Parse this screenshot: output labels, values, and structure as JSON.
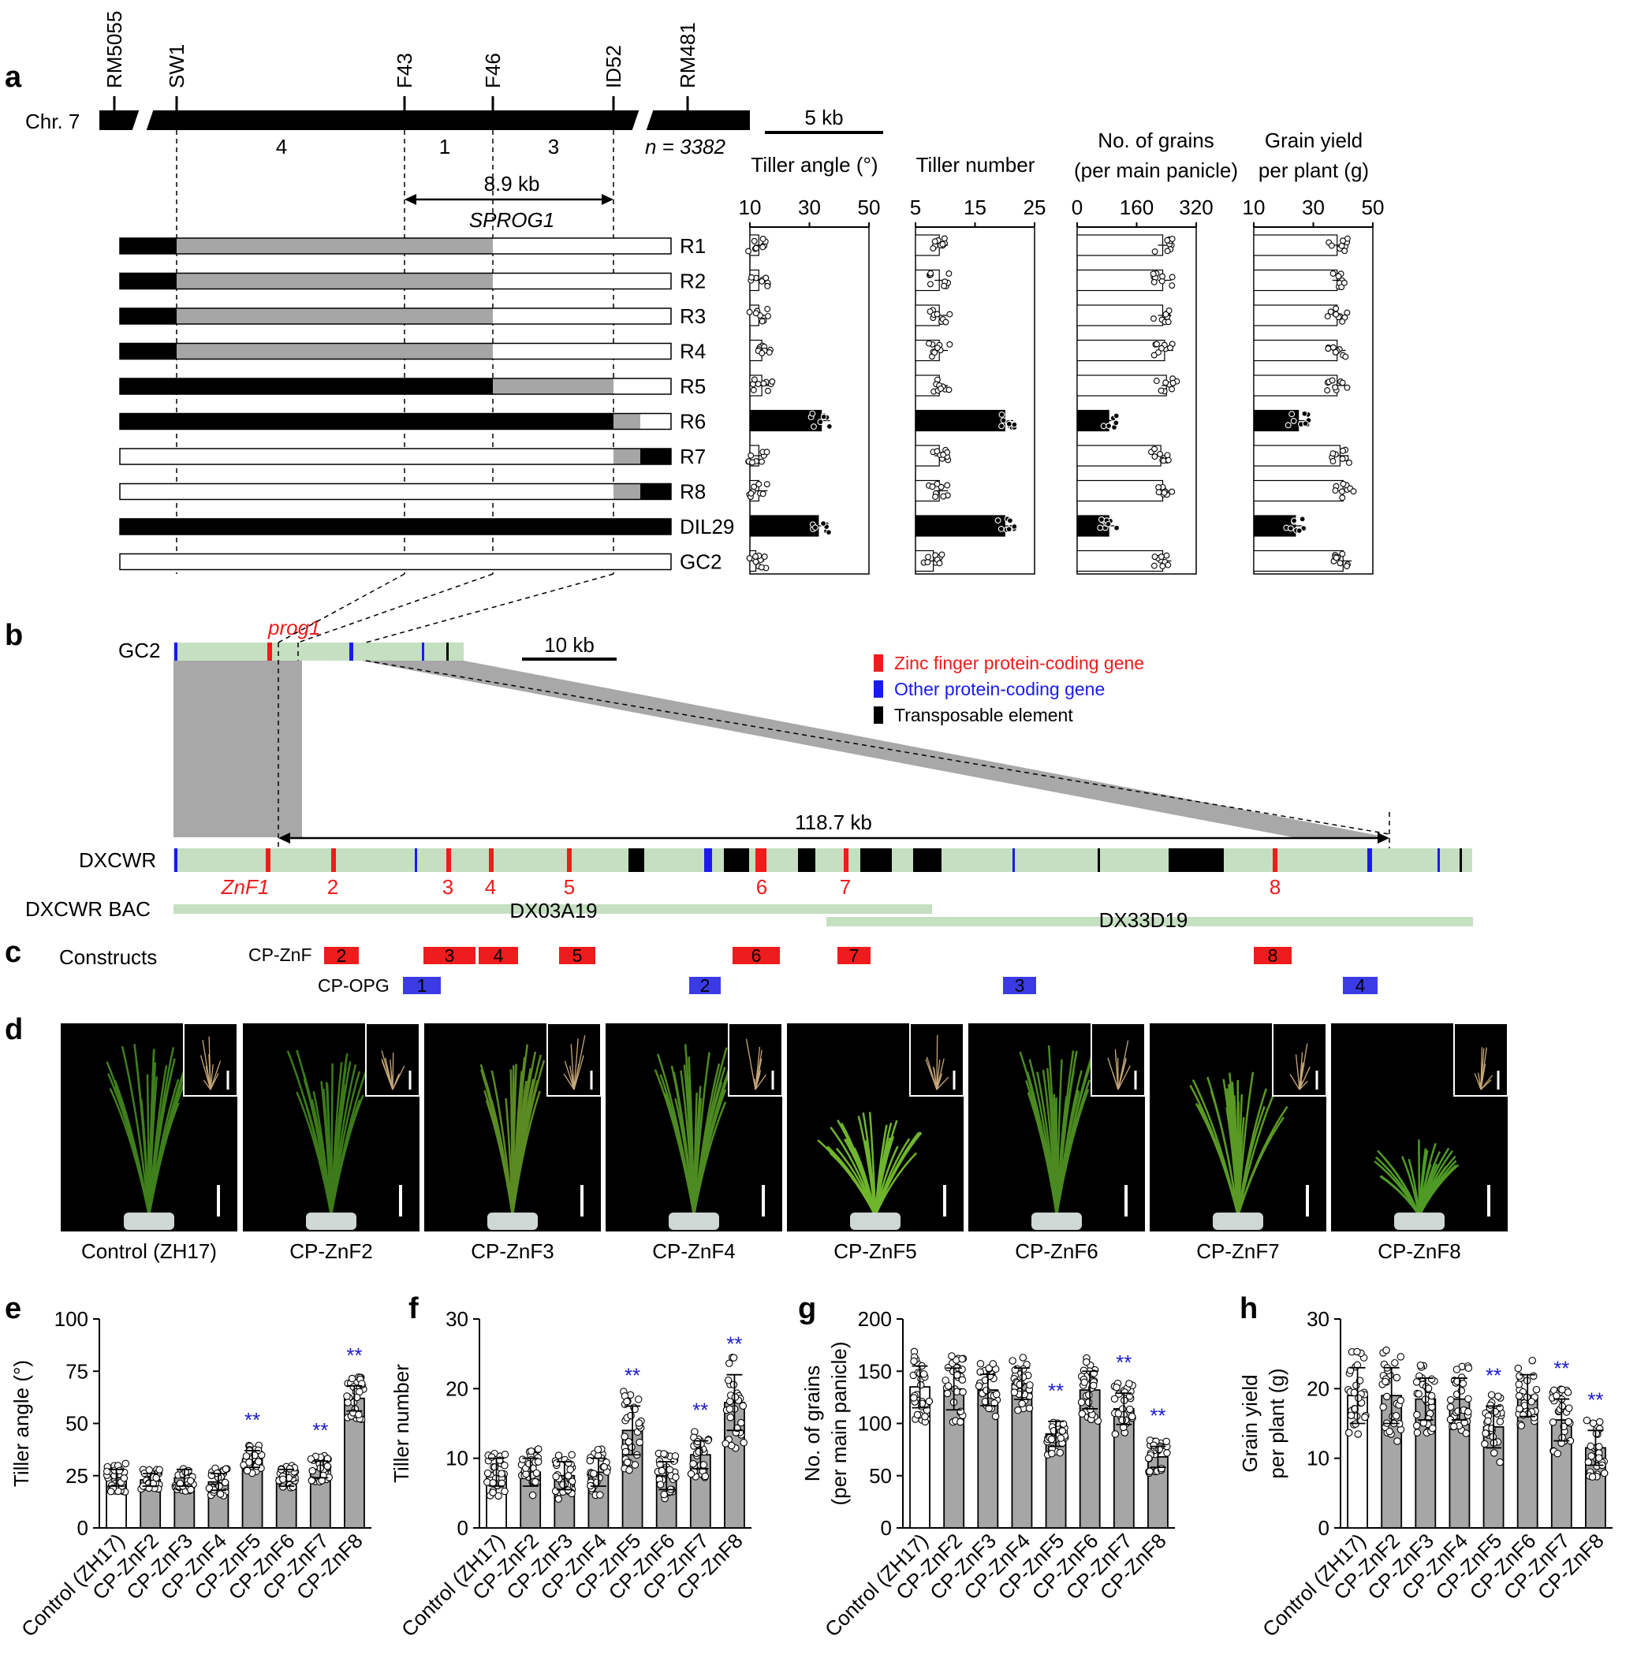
{
  "panel_labels": [
    "a",
    "b",
    "c",
    "d",
    "e",
    "f",
    "g",
    "h"
  ],
  "panel_a": {
    "markers": [
      "RM5055",
      "SW1",
      "F43",
      "F46",
      "ID52",
      "RM481"
    ],
    "chr_label": "Chr. 7",
    "segment_counts": [
      "4",
      "1",
      "3"
    ],
    "n_label": "n = 3382",
    "scale_label": "5 kb",
    "interval_label": "8.9 kb",
    "gene_label": "SPROG1",
    "lines": [
      "R1",
      "R2",
      "R3",
      "R4",
      "R5",
      "R6",
      "R7",
      "R8",
      "DIL29",
      "GC2"
    ],
    "genotypes": [
      [
        "B",
        "G",
        "G",
        "W",
        "W",
        "W"
      ],
      [
        "B",
        "G",
        "G",
        "W",
        "W",
        "W"
      ],
      [
        "B",
        "G",
        "G",
        "W",
        "W",
        "W"
      ],
      [
        "B",
        "G",
        "G",
        "W",
        "W",
        "W"
      ],
      [
        "B",
        "B",
        "B",
        "G",
        "W",
        "W"
      ],
      [
        "B",
        "B",
        "B",
        "B",
        "G",
        "W"
      ],
      [
        "W",
        "W",
        "W",
        "W",
        "G",
        "B"
      ],
      [
        "W",
        "W",
        "W",
        "W",
        "G",
        "B"
      ],
      [
        "B",
        "B",
        "B",
        "B",
        "B",
        "B"
      ],
      [
        "W",
        "W",
        "W",
        "W",
        "W",
        "W"
      ]
    ],
    "traits": [
      {
        "title1": "Tiller angle (°)",
        "title2": "",
        "ticks": [
          "10",
          "30",
          "50"
        ],
        "min": 10,
        "max": 50,
        "means": [
          13,
          13,
          13,
          14,
          14,
          34,
          13,
          13,
          33,
          12
        ],
        "black": [
          false,
          false,
          false,
          false,
          false,
          true,
          false,
          false,
          true,
          false
        ]
      },
      {
        "title1": "Tiller number",
        "title2": "",
        "ticks": [
          "5",
          "15",
          "25"
        ],
        "min": 5,
        "max": 25,
        "means": [
          9,
          9,
          9,
          9,
          9,
          20,
          9,
          9,
          20,
          8
        ],
        "black": [
          false,
          false,
          false,
          false,
          false,
          true,
          false,
          false,
          true,
          false
        ]
      },
      {
        "title1": "No. of grains",
        "title2": "(per main panicle)",
        "ticks": [
          "0",
          "160",
          "320"
        ],
        "min": 0,
        "max": 320,
        "means": [
          230,
          230,
          230,
          235,
          240,
          85,
          225,
          230,
          85,
          230
        ],
        "black": [
          false,
          false,
          false,
          false,
          false,
          true,
          false,
          false,
          true,
          false
        ]
      },
      {
        "title1": "Grain yield",
        "title2": "per plant (g)",
        "ticks": [
          "10",
          "30",
          "50"
        ],
        "min": 10,
        "max": 50,
        "means": [
          38,
          38,
          38,
          38,
          38,
          25,
          39,
          40,
          24,
          40
        ],
        "black": [
          false,
          false,
          false,
          false,
          false,
          true,
          false,
          false,
          true,
          false
        ]
      }
    ]
  },
  "panel_b": {
    "gc2_label": "GC2",
    "prog1_label": "prog1",
    "scale_label": "10 kb",
    "dxcwr_label": "DXCWR",
    "span_label": "118.7 kb",
    "legend": [
      {
        "label": "Zinc finger protein-coding gene",
        "color": "#ee1c1c"
      },
      {
        "label": "Other protein-coding gene",
        "color": "#1a1aee"
      },
      {
        "label": "Transposable element",
        "color": "#000000"
      }
    ],
    "znf_labels": [
      "ZnF1",
      "2",
      "3",
      "4",
      "5",
      "6",
      "7",
      "8"
    ],
    "bac_label": "DXCWR BAC",
    "bac1": "DX03A19",
    "bac2": "DX33D19"
  },
  "panel_c": {
    "constructs_label": "Constructs",
    "cpznf_label": "CP-ZnF",
    "cpopg_label": "CP-OPG",
    "znf_nums": [
      "2",
      "3",
      "4",
      "5",
      "6",
      "7",
      "8"
    ],
    "opg_nums": [
      "1",
      "2",
      "3",
      "4"
    ]
  },
  "panel_d": {
    "captions": [
      "Control (ZH17)",
      "CP-ZnF2",
      "CP-ZnF3",
      "CP-ZnF4",
      "CP-ZnF5",
      "CP-ZnF6",
      "CP-ZnF7",
      "CP-ZnF8"
    ]
  },
  "colors": {
    "red": "#ee1c1c",
    "blue": "#1a1aee",
    "green": "#c5dfc1",
    "grey": "#a6a6a6",
    "sig": "#1a1acc"
  },
  "chart_data": [
    {
      "panel": "e",
      "type": "bar",
      "ylabel": "Tiller angle (°)",
      "ylim": [
        0,
        100
      ],
      "yticks": [
        "0",
        "25",
        "50",
        "75",
        "100"
      ],
      "categories": [
        "Control (ZH17)",
        "CP-ZnF2",
        "CP-ZnF3",
        "CP-ZnF4",
        "CP-ZnF5",
        "CP-ZnF6",
        "CP-ZnF7",
        "CP-ZnF8"
      ],
      "values": [
        24,
        23,
        24,
        22,
        33,
        24,
        28,
        62
      ],
      "errors": [
        4,
        3,
        4,
        4,
        4,
        4,
        4,
        6
      ],
      "significance": [
        "",
        "",
        "",
        "",
        "**",
        "",
        "**",
        "**"
      ]
    },
    {
      "panel": "f",
      "type": "bar",
      "ylabel": "Tiller number",
      "ylim": [
        0,
        30
      ],
      "yticks": [
        "0",
        "10",
        "20",
        "30"
      ],
      "categories": [
        "Control (ZH17)",
        "CP-ZnF2",
        "CP-ZnF3",
        "CP-ZnF4",
        "CP-ZnF5",
        "CP-ZnF6",
        "CP-ZnF7",
        "CP-ZnF8"
      ],
      "values": [
        8,
        8,
        7.5,
        8,
        14,
        7.5,
        10.5,
        18
      ],
      "errors": [
        2,
        2,
        2,
        2,
        3.5,
        2,
        2,
        4
      ],
      "significance": [
        "",
        "",
        "",
        "",
        "**",
        "",
        "**",
        "**"
      ]
    },
    {
      "panel": "g",
      "type": "bar",
      "ylabel": "No. of grains\n(per main panicle)",
      "ylim": [
        0,
        200
      ],
      "yticks": [
        "0",
        "50",
        "100",
        "150",
        "200"
      ],
      "categories": [
        "Control (ZH17)",
        "CP-ZnF2",
        "CP-ZnF3",
        "CP-ZnF4",
        "CP-ZnF5",
        "CP-ZnF6",
        "CP-ZnF7",
        "CP-ZnF8"
      ],
      "values": [
        135,
        133,
        132,
        138,
        90,
        132,
        114,
        68
      ],
      "errors": [
        20,
        20,
        15,
        15,
        12,
        18,
        15,
        10
      ],
      "significance": [
        "",
        "",
        "",
        "",
        "**",
        "",
        "**",
        "**"
      ]
    },
    {
      "panel": "h",
      "type": "bar",
      "ylabel": "Grain yield\nper plant (g)",
      "ylim": [
        0,
        30
      ],
      "yticks": [
        "0",
        "10",
        "20",
        "30"
      ],
      "categories": [
        "Control (ZH17)",
        "CP-ZnF2",
        "CP-ZnF3",
        "CP-ZnF4",
        "CP-ZnF5",
        "CP-ZnF6",
        "CP-ZnF7",
        "CP-ZnF8"
      ],
      "values": [
        19,
        19,
        18.5,
        18.5,
        14.5,
        19,
        15.5,
        11.5
      ],
      "errors": [
        4,
        4,
        3,
        3,
        3,
        3,
        3,
        2.5
      ],
      "significance": [
        "",
        "",
        "",
        "",
        "**",
        "",
        "**",
        "**"
      ]
    }
  ]
}
